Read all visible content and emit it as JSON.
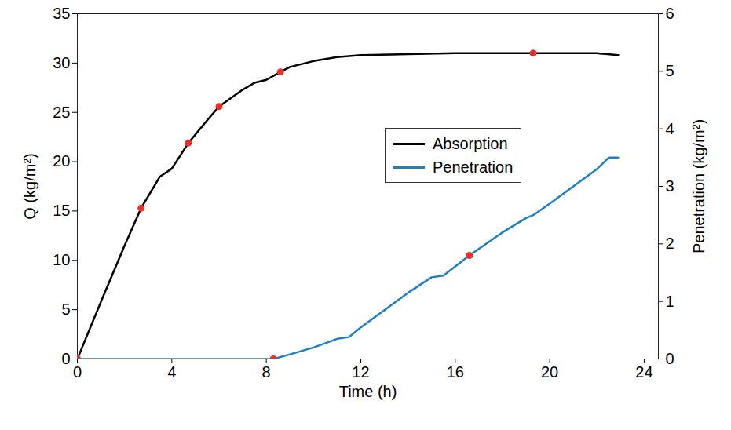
{
  "chart_data": {
    "type": "line",
    "xlabel": "Time (h)",
    "ylabel": "Q (kg/m²)",
    "y2label": "Penetration (kg/m²)",
    "xlim": [
      0,
      24.6
    ],
    "xticks": [
      0,
      4,
      8,
      12,
      16,
      20,
      24
    ],
    "ylim": [
      0,
      35
    ],
    "yticks": [
      0,
      5,
      10,
      15,
      20,
      25,
      30,
      35
    ],
    "y2lim": [
      0,
      6
    ],
    "y2ticks": [
      0,
      1,
      2,
      3,
      4,
      5,
      6
    ],
    "grid": false,
    "legend": "center",
    "series": [
      {
        "name": "Absorption",
        "color": "#000000",
        "axis": "y",
        "marker": "circle",
        "x": [
          0,
          1,
          2,
          2.7,
          3.5,
          4,
          4.7,
          5.5,
          6,
          7,
          7.5,
          8,
          8.6,
          9,
          10,
          11,
          12,
          14,
          16,
          19.3,
          22,
          22.9
        ],
        "values": [
          0,
          5.8,
          11.5,
          15.3,
          18.5,
          19.3,
          21.9,
          24.2,
          25.6,
          27.3,
          28,
          28.3,
          29.1,
          29.6,
          30.2,
          30.6,
          30.8,
          30.9,
          31,
          31,
          31,
          30.8
        ],
        "marked_x": [
          0,
          2.7,
          4.7,
          6,
          8.6,
          19.3
        ]
      },
      {
        "name": "Penetration",
        "color": "#1f7fc4",
        "axis": "y2",
        "marker": "circle",
        "x": [
          0,
          8.3,
          9,
          10,
          11,
          11.5,
          12,
          13,
          14,
          15,
          15.5,
          16.6,
          18,
          19,
          19.3,
          20,
          21,
          22,
          22.5,
          22.9
        ],
        "values": [
          0,
          0,
          0.08,
          0.2,
          0.35,
          0.38,
          0.55,
          0.85,
          1.15,
          1.42,
          1.45,
          1.8,
          2.2,
          2.45,
          2.5,
          2.7,
          3.0,
          3.3,
          3.5,
          3.5
        ],
        "marked_x": [
          8.3,
          16.6
        ]
      }
    ]
  }
}
